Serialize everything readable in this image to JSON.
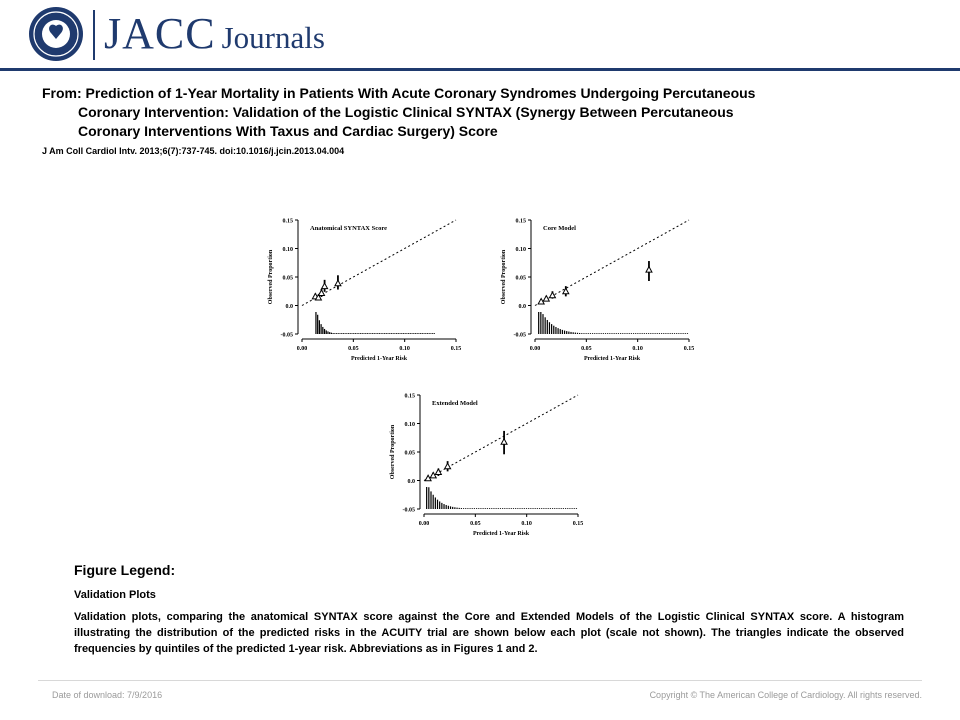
{
  "header": {
    "brand_main": "JACC",
    "brand_sub": "Journals",
    "seal_text": "AMERICAN COLLEGE OF CARDIOLOGY",
    "brand_color": "#1f3a6e"
  },
  "article": {
    "title_line1": "From: Prediction of 1-Year Mortality in Patients With Acute Coronary Syndromes Undergoing Percutaneous",
    "title_line2": "Coronary Intervention: Validation of the Logistic Clinical SYNTAX (Synergy Between Percutaneous",
    "title_line3": "Coronary Interventions With Taxus and Cardiac Surgery) Score",
    "citation": "J Am Coll Cardiol Intv. 2013;6(7):737-745. doi:10.1016/j.jcin.2013.04.004"
  },
  "legend": {
    "heading": "Figure Legend:",
    "subheading": "Validation Plots",
    "text": "Validation plots, comparing the anatomical SYNTAX score against the Core and Extended Models of the Logistic Clinical SYNTAX score. A histogram illustrating the distribution of the predicted risks in the ACUITY trial are shown below each plot (scale not shown). The triangles indicate the observed frequencies by quintiles of the predicted 1-year risk. Abbreviations as in Figures 1 and 2."
  },
  "footer": {
    "download_date": "Date of download:  7/9/2016",
    "copyright": "Copyright © The American College of Cardiology. All rights reserved."
  },
  "chart_data": [
    {
      "type": "scatter",
      "title": "Anatomical SYNTAX Score",
      "xlabel": "Predicted 1-Year Risk",
      "ylabel": "Observed Proportion",
      "xlim": [
        0,
        0.15
      ],
      "ylim": [
        -0.05,
        0.15
      ],
      "xticks": [
        "0.00",
        "0.05",
        "0.10",
        "0.15"
      ],
      "yticks": [
        "-0.05",
        "0.0",
        "0.05",
        "0.10",
        "0.15"
      ],
      "reference_line": "identity (dotted)",
      "points": [
        {
          "x": 0.013,
          "y": 0.016,
          "lo": 0.011,
          "hi": 0.021
        },
        {
          "x": 0.016,
          "y": 0.014,
          "lo": 0.009,
          "hi": 0.019
        },
        {
          "x": 0.019,
          "y": 0.022,
          "lo": 0.015,
          "hi": 0.029
        },
        {
          "x": 0.022,
          "y": 0.034,
          "lo": 0.024,
          "hi": 0.045
        },
        {
          "x": 0.035,
          "y": 0.039,
          "lo": 0.028,
          "hi": 0.053
        }
      ],
      "histogram": {
        "range": [
          0.013,
          0.13
        ],
        "peak_at": 0.014,
        "decay": 0.005
      }
    },
    {
      "type": "scatter",
      "title": "Core Model",
      "xlabel": "Predicted 1-Year Risk",
      "ylabel": "Observed Proportion",
      "xlim": [
        0,
        0.15
      ],
      "ylim": [
        -0.05,
        0.15
      ],
      "xticks": [
        "0.00",
        "0.05",
        "0.10",
        "0.15"
      ],
      "yticks": [
        "-0.05",
        "0.0",
        "0.05",
        "0.10",
        "0.15"
      ],
      "reference_line": "identity (dotted)",
      "points": [
        {
          "x": 0.006,
          "y": 0.007,
          "lo": 0.003,
          "hi": 0.011
        },
        {
          "x": 0.011,
          "y": 0.012,
          "lo": 0.007,
          "hi": 0.017
        },
        {
          "x": 0.017,
          "y": 0.018,
          "lo": 0.012,
          "hi": 0.025
        },
        {
          "x": 0.03,
          "y": 0.025,
          "lo": 0.016,
          "hi": 0.034
        },
        {
          "x": 0.111,
          "y": 0.063,
          "lo": 0.043,
          "hi": 0.078
        }
      ],
      "histogram": {
        "range": [
          0.003,
          0.15
        ],
        "peak_at": 0.006,
        "decay": 0.012
      }
    },
    {
      "type": "scatter",
      "title": "Extended Model",
      "xlabel": "Predicted 1-Year Risk",
      "ylabel": "Observed Proportion",
      "xlim": [
        0,
        0.15
      ],
      "ylim": [
        -0.05,
        0.15
      ],
      "xticks": [
        "0.00",
        "0.05",
        "0.10",
        "0.15"
      ],
      "yticks": [
        "-0.05",
        "0.0",
        "0.05",
        "0.10",
        "0.15"
      ],
      "reference_line": "identity (dotted)",
      "points": [
        {
          "x": 0.004,
          "y": 0.004,
          "lo": 0.0,
          "hi": 0.008
        },
        {
          "x": 0.009,
          "y": 0.009,
          "lo": 0.005,
          "hi": 0.014
        },
        {
          "x": 0.014,
          "y": 0.015,
          "lo": 0.008,
          "hi": 0.021
        },
        {
          "x": 0.023,
          "y": 0.025,
          "lo": 0.016,
          "hi": 0.034
        },
        {
          "x": 0.078,
          "y": 0.068,
          "lo": 0.046,
          "hi": 0.087
        }
      ],
      "histogram": {
        "range": [
          0.002,
          0.15
        ],
        "peak_at": 0.004,
        "decay": 0.01
      }
    }
  ]
}
